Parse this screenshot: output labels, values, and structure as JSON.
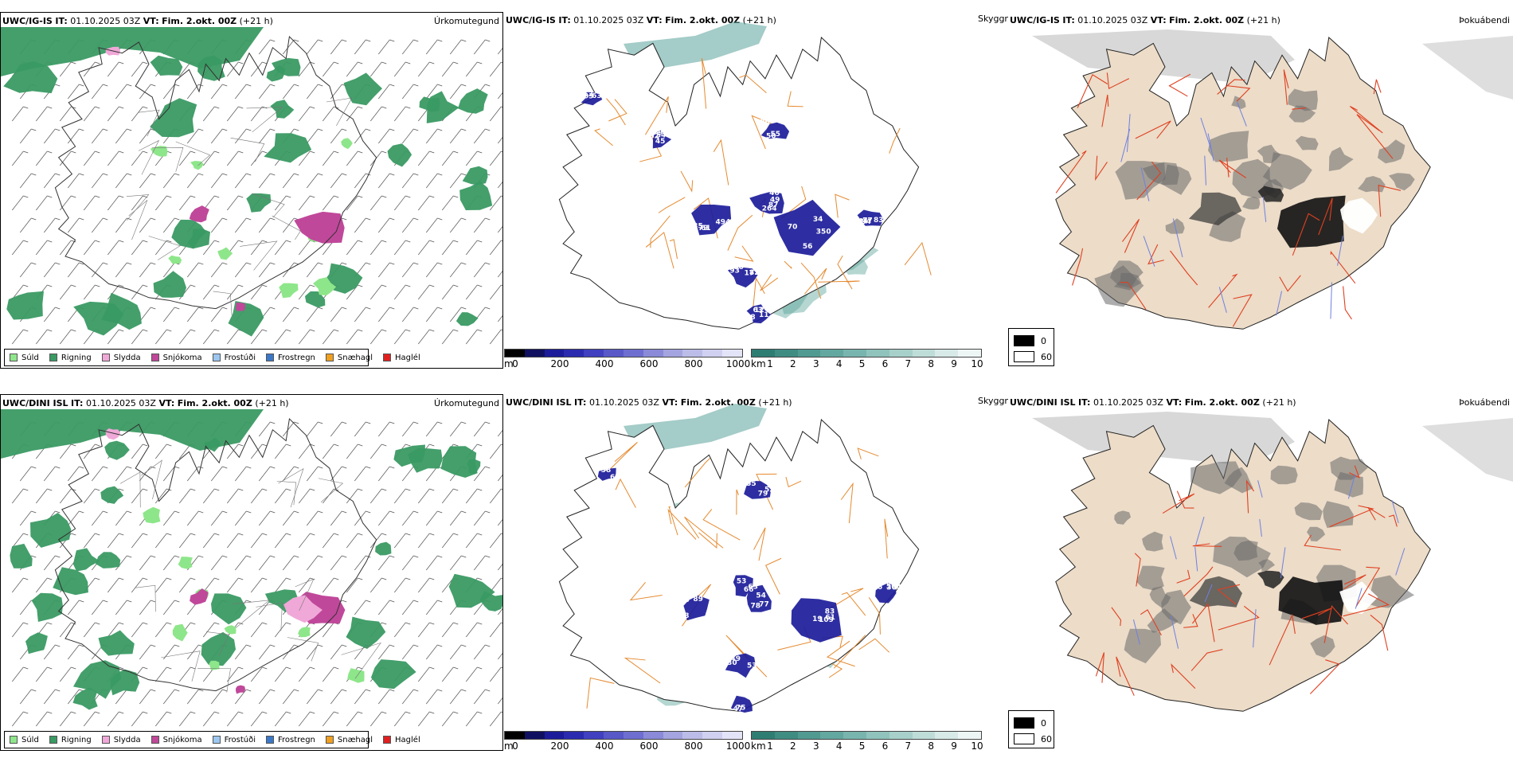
{
  "colors": {
    "green_dark": "#3a9a63",
    "green_light": "#8ee68a",
    "pink_light": "#f0a8d8",
    "magenta": "#c0489a",
    "blue_light": "#9cc7f0",
    "blue_mid": "#3b78c8",
    "orange": "#f0a020",
    "red": "#e02020",
    "navy": "#1c1c9a",
    "teal": "#5aa39a",
    "road_orange": "#e58a30",
    "land_beige": "#ecdcc8"
  },
  "precip_legend": [
    {
      "label": "Súld",
      "color": "#8ee68a"
    },
    {
      "label": "Rigning",
      "color": "#3a9a63"
    },
    {
      "label": "Slydda",
      "color": "#f0a8d8"
    },
    {
      "label": "Snjókoma",
      "color": "#c0489a"
    },
    {
      "label": "Frostúði",
      "color": "#9cc7f0"
    },
    {
      "label": "Frostregn",
      "color": "#3b78c8"
    },
    {
      "label": "Snæhagl",
      "color": "#f0a020"
    },
    {
      "label": "Haglél",
      "color": "#e02020"
    }
  ],
  "cloud_scale": {
    "unit": "m",
    "ticks": [
      "0",
      "200",
      "400",
      "600",
      "800",
      "1000"
    ],
    "colors": [
      "#000000",
      "#101060",
      "#1c1c9a",
      "#2b2bb0",
      "#4040c0",
      "#5858c8",
      "#6e6ed0",
      "#8a8ad8",
      "#a4a4e0",
      "#bcbce8",
      "#d0d0f0",
      "#e4e4f8"
    ]
  },
  "vis_scale": {
    "unit": "km",
    "ticks": [
      "1",
      "2",
      "3",
      "4",
      "5",
      "6",
      "7",
      "8",
      "9",
      "10"
    ],
    "colors": [
      "#2e7d72",
      "#3f8c82",
      "#509a91",
      "#63a8a0",
      "#78b5ae",
      "#8fc3bc",
      "#a7d0ca",
      "#bfddd8",
      "#d7eae7",
      "#eef6f5"
    ]
  },
  "sky_legend": [
    {
      "label": "0",
      "color": "#000000"
    },
    {
      "label": "60",
      "color": "#ffffff"
    }
  ],
  "rows": [
    {
      "model": "UWC/IG-IS",
      "it_label": "IT:",
      "it_value": "01.10.2025 03Z",
      "vt_label": "VT:",
      "vt_value": "Fim. 2.okt. 00Z",
      "lead": "(+21 h)",
      "precip_title": "Úrkomutegund",
      "sky_title": "Skyggni",
      "fog_title": "Þokuábendi",
      "labels": [
        "70",
        "61",
        "46",
        "83",
        "17",
        "11",
        "82",
        "03",
        "86",
        "56",
        "79",
        "49",
        "44",
        "82",
        "63",
        "79",
        "63",
        "50",
        "34",
        "35",
        "87",
        "84",
        "93",
        "68",
        "45",
        "52",
        "55",
        "350",
        "494",
        "264",
        "77",
        "186",
        "12",
        "54"
      ]
    },
    {
      "model": "UWC/DINI ISL",
      "it_label": "IT:",
      "it_value": "01.10.2025 03Z",
      "vt_label": "VT:",
      "vt_value": "Fim. 2.okt. 00Z",
      "lead": "(+21 h)",
      "precip_title": "Úrkomutegund",
      "sky_title": "Skyggni",
      "fog_title": "Þokuábendi",
      "labels": [
        "83",
        "77",
        "68",
        "66",
        "49",
        "75",
        "79",
        "38",
        "56",
        "61",
        "54",
        "89",
        "53",
        "30",
        "47",
        "52",
        "59",
        "364",
        "109",
        "78",
        "56",
        "63",
        "53",
        "54",
        "55",
        "63",
        "76",
        "19"
      ]
    }
  ]
}
